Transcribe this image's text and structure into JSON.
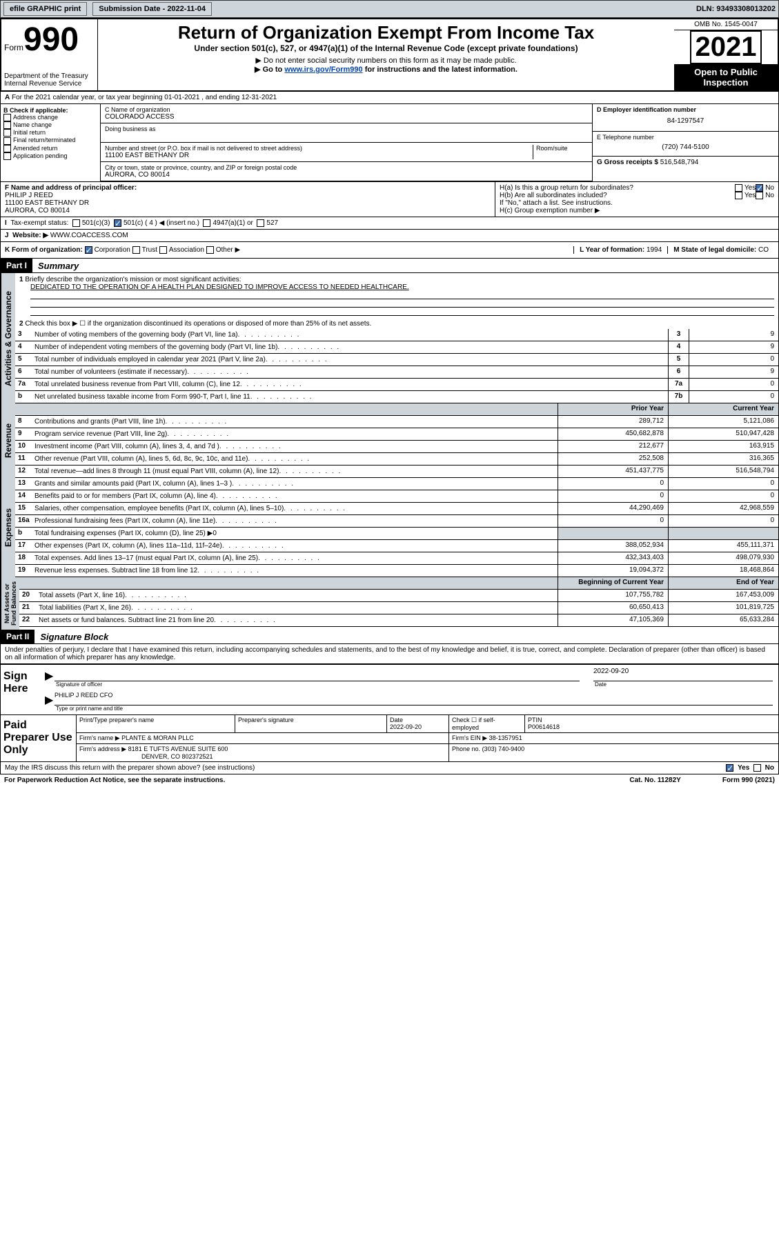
{
  "topbar": {
    "efile": "efile GRAPHIC print",
    "subdate_label": "Submission Date - 2022-11-04",
    "dln": "DLN: 93493308013202"
  },
  "header": {
    "form_prefix": "Form",
    "form_no": "990",
    "dept": "Department of the Treasury",
    "irs": "Internal Revenue Service",
    "title": "Return of Organization Exempt From Income Tax",
    "sub1": "Under section 501(c), 527, or 4947(a)(1) of the Internal Revenue Code (except private foundations)",
    "sub2": "▶ Do not enter social security numbers on this form as it may be made public.",
    "sub3_pre": "▶ Go to ",
    "sub3_link": "www.irs.gov/Form990",
    "sub3_post": " for instructions and the latest information.",
    "omb": "OMB No. 1545-0047",
    "year": "2021",
    "open": "Open to Public Inspection"
  },
  "lineA": "For the 2021 calendar year, or tax year beginning 01-01-2021   , and ending 12-31-2021",
  "B": {
    "hdr": "B Check if applicable:",
    "opts": [
      "Address change",
      "Name change",
      "Initial return",
      "Final return/terminated",
      "Amended return",
      "Application pending"
    ]
  },
  "C": {
    "name_label": "C Name of organization",
    "name": "COLORADO ACCESS",
    "dba_label": "Doing business as",
    "addr_label": "Number and street (or P.O. box if mail is not delivered to street address)",
    "room_label": "Room/suite",
    "addr": "11100 EAST BETHANY DR",
    "city_label": "City or town, state or province, country, and ZIP or foreign postal code",
    "city": "AURORA, CO  80014"
  },
  "D": {
    "label": "D Employer identification number",
    "val": "84-1297547"
  },
  "E": {
    "label": "E Telephone number",
    "val": "(720) 744-5100"
  },
  "G": {
    "label": "G Gross receipts $",
    "val": "516,548,794"
  },
  "F": {
    "label": "F  Name and address of principal officer:",
    "name": "PHILIP J REED",
    "addr1": "11100 EAST BETHANY DR",
    "addr2": "AURORA, CO  80014"
  },
  "H": {
    "a": "H(a)  Is this a group return for subordinates?",
    "b": "H(b)  Are all subordinates included?",
    "b_note": "If \"No,\" attach a list. See instructions.",
    "c": "H(c)  Group exemption number ▶"
  },
  "I": {
    "label": "Tax-exempt status:",
    "c3": "501(c)(3)",
    "c": "501(c) ( 4 ) ◀ (insert no.)",
    "a": "4947(a)(1) or",
    "527": "527"
  },
  "J": {
    "label": "Website: ▶",
    "val": "WWW.COACCESS.COM"
  },
  "K": {
    "label": "K Form of organization:",
    "corp": "Corporation",
    "trust": "Trust",
    "assoc": "Association",
    "other": "Other ▶"
  },
  "L": {
    "label": "L Year of formation:",
    "val": "1994"
  },
  "M": {
    "label": "M State of legal domicile:",
    "val": "CO"
  },
  "part1": {
    "hdr": "Part I",
    "title": "Summary"
  },
  "summary": {
    "l1a": "Briefly describe the organization's mission or most significant activities:",
    "l1b": "DEDICATED TO THE OPERATION OF A HEALTH PLAN DESIGNED TO IMPROVE ACCESS TO NEEDED HEALTHCARE.",
    "l2": "Check this box ▶ ☐  if the organization discontinued its operations or disposed of more than 25% of its net assets.",
    "rows_gov": [
      {
        "n": "3",
        "d": "Number of voting members of the governing body (Part VI, line 1a)",
        "k": "3",
        "v": "9"
      },
      {
        "n": "4",
        "d": "Number of independent voting members of the governing body (Part VI, line 1b)",
        "k": "4",
        "v": "9"
      },
      {
        "n": "5",
        "d": "Total number of individuals employed in calendar year 2021 (Part V, line 2a)",
        "k": "5",
        "v": "0"
      },
      {
        "n": "6",
        "d": "Total number of volunteers (estimate if necessary)",
        "k": "6",
        "v": "9"
      },
      {
        "n": "7a",
        "d": "Total unrelated business revenue from Part VIII, column (C), line 12",
        "k": "7a",
        "v": "0"
      },
      {
        "n": "b",
        "d": "Net unrelated business taxable income from Form 990-T, Part I, line 11",
        "k": "7b",
        "v": "0"
      }
    ],
    "col_prior": "Prior Year",
    "col_curr": "Current Year",
    "rows_rev": [
      {
        "n": "8",
        "d": "Contributions and grants (Part VIII, line 1h)",
        "p": "289,712",
        "c": "5,121,086"
      },
      {
        "n": "9",
        "d": "Program service revenue (Part VIII, line 2g)",
        "p": "450,682,878",
        "c": "510,947,428"
      },
      {
        "n": "10",
        "d": "Investment income (Part VIII, column (A), lines 3, 4, and 7d )",
        "p": "212,677",
        "c": "163,915"
      },
      {
        "n": "11",
        "d": "Other revenue (Part VIII, column (A), lines 5, 6d, 8c, 9c, 10c, and 11e)",
        "p": "252,508",
        "c": "316,365"
      },
      {
        "n": "12",
        "d": "Total revenue—add lines 8 through 11 (must equal Part VIII, column (A), line 12)",
        "p": "451,437,775",
        "c": "516,548,794"
      }
    ],
    "rows_exp": [
      {
        "n": "13",
        "d": "Grants and similar amounts paid (Part IX, column (A), lines 1–3 )",
        "p": "0",
        "c": "0"
      },
      {
        "n": "14",
        "d": "Benefits paid to or for members (Part IX, column (A), line 4)",
        "p": "0",
        "c": "0"
      },
      {
        "n": "15",
        "d": "Salaries, other compensation, employee benefits (Part IX, column (A), lines 5–10)",
        "p": "44,290,469",
        "c": "42,968,559"
      },
      {
        "n": "16a",
        "d": "Professional fundraising fees (Part IX, column (A), line 11e)",
        "p": "0",
        "c": "0"
      },
      {
        "n": "b",
        "d": "Total fundraising expenses (Part IX, column (D), line 25) ▶0",
        "p": "",
        "c": "",
        "shade": true
      },
      {
        "n": "17",
        "d": "Other expenses (Part IX, column (A), lines 11a–11d, 11f–24e)",
        "p": "388,052,934",
        "c": "455,111,371"
      },
      {
        "n": "18",
        "d": "Total expenses. Add lines 13–17 (must equal Part IX, column (A), line 25)",
        "p": "432,343,403",
        "c": "498,079,930"
      },
      {
        "n": "19",
        "d": "Revenue less expenses. Subtract line 18 from line 12",
        "p": "19,094,372",
        "c": "18,468,864"
      }
    ],
    "col_beg": "Beginning of Current Year",
    "col_end": "End of Year",
    "rows_net": [
      {
        "n": "20",
        "d": "Total assets (Part X, line 16)",
        "p": "107,755,782",
        "c": "167,453,009"
      },
      {
        "n": "21",
        "d": "Total liabilities (Part X, line 26)",
        "p": "60,650,413",
        "c": "101,819,725"
      },
      {
        "n": "22",
        "d": "Net assets or fund balances. Subtract line 21 from line 20",
        "p": "47,105,369",
        "c": "65,633,284"
      }
    ]
  },
  "part2": {
    "hdr": "Part II",
    "title": "Signature Block"
  },
  "penalty": "Under penalties of perjury, I declare that I have examined this return, including accompanying schedules and statements, and to the best of my knowledge and belief, it is true, correct, and complete. Declaration of preparer (other than officer) is based on all information of which preparer has any knowledge.",
  "sign": {
    "here": "Sign Here",
    "sigoff": "Signature of officer",
    "date": "2022-09-20",
    "datel": "Date",
    "name": "PHILIP J REED CFO",
    "namecap": "Type or print name and title"
  },
  "prep": {
    "label": "Paid Preparer Use Only",
    "h_name": "Print/Type preparer's name",
    "h_sig": "Preparer's signature",
    "h_date": "Date",
    "date": "2022-09-20",
    "h_check": "Check ☐ if self-employed",
    "h_ptin": "PTIN",
    "ptin": "P00614618",
    "firm_l": "Firm's name      ▶",
    "firm": "PLANTE & MORAN PLLC",
    "ein_l": "Firm's EIN ▶",
    "ein": "38-1357951",
    "addr_l": "Firm's address ▶",
    "addr1": "8181 E TUFTS AVENUE SUITE 600",
    "addr2": "DENVER, CO  802372521",
    "phone_l": "Phone no.",
    "phone": "(303) 740-9400"
  },
  "may": "May the IRS discuss this return with the preparer shown above? (see instructions)",
  "footer": {
    "left": "For Paperwork Reduction Act Notice, see the separate instructions.",
    "mid": "Cat. No. 11282Y",
    "right": "Form 990 (2021)"
  },
  "yesno": {
    "yes": "Yes",
    "no": "No"
  }
}
